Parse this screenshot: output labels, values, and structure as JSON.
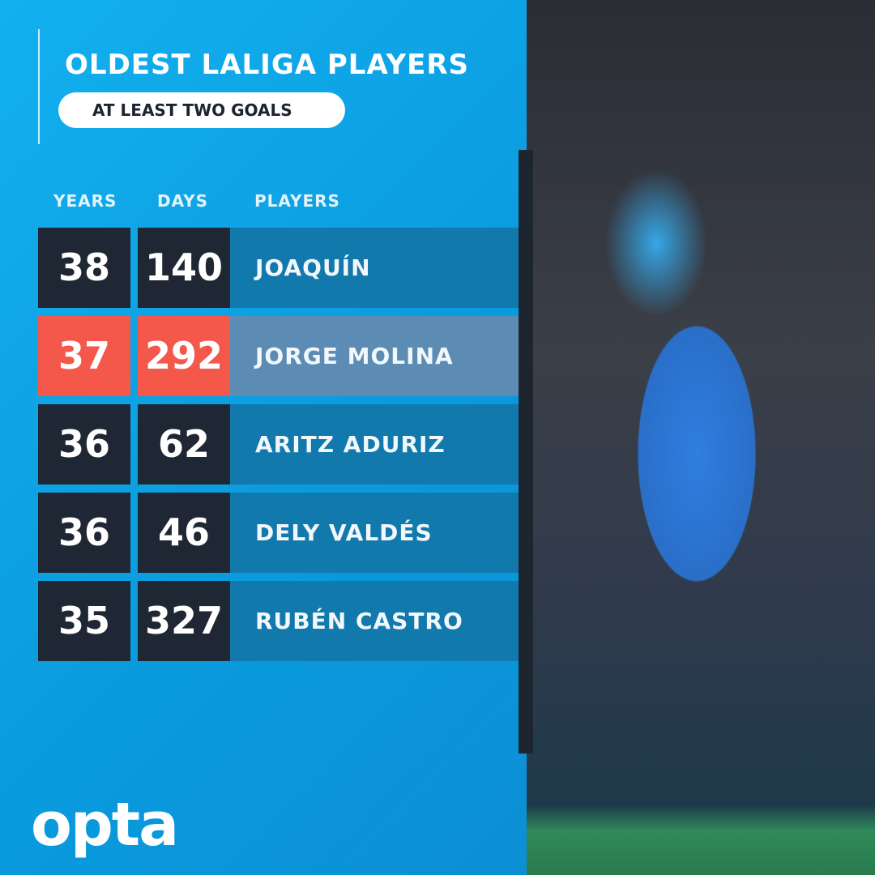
{
  "title": "OLDEST LALIGA PLAYERS",
  "subtitle": "AT LEAST TWO GOALS",
  "headers": {
    "years": "YEARS",
    "days": "DAYS",
    "players": "PLAYERS"
  },
  "rows": [
    {
      "years": "38",
      "days": "140",
      "player": "JOAQUÍN",
      "highlight": false
    },
    {
      "years": "37",
      "days": "292",
      "player": "JORGE MOLINA",
      "highlight": true
    },
    {
      "years": "36",
      "days": "62",
      "player": "ARITZ ADURIZ",
      "highlight": false
    },
    {
      "years": "36",
      "days": "46",
      "player": "DELY VALDÉS",
      "highlight": false
    },
    {
      "years": "35",
      "days": "327",
      "player": "RUBÉN CASTRO",
      "highlight": false
    }
  ],
  "logo": "opta",
  "colors": {
    "background": "#0b9fe0",
    "cell": "#1e2733",
    "highlight": "#f3584b",
    "band": "#1279ad",
    "highlight_band": "#5c8cb4"
  }
}
